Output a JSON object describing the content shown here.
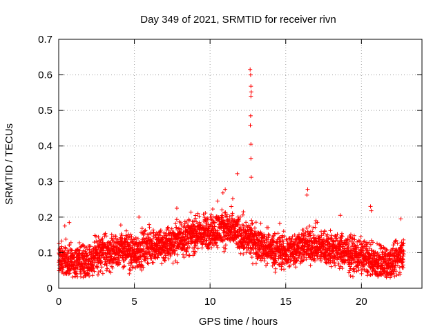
{
  "chart_data": {
    "type": "scatter",
    "title": "Day 349 of 2021, SRMTID for receiver rivn",
    "xlabel": "GPS time / hours",
    "ylabel": "SRMTID / TECUs",
    "xlim": [
      0,
      24
    ],
    "ylim": [
      0,
      0.7
    ],
    "xticks": [
      0,
      5,
      10,
      15,
      20
    ],
    "xtick_labels": [
      "0",
      "5",
      "10",
      "15",
      "20"
    ],
    "yticks": [
      0,
      0.1,
      0.2,
      0.3,
      0.4,
      0.5,
      0.6,
      0.7
    ],
    "ytick_labels": [
      "0",
      "0.1",
      "0.2",
      "0.3",
      "0.4",
      "0.5",
      "0.6",
      "0.7"
    ],
    "grid": true,
    "marker": "plus",
    "color": "#ff0000",
    "x_end": 22.8,
    "baseline_profile": [
      [
        0.0,
        0.09
      ],
      [
        1.0,
        0.07
      ],
      [
        2.0,
        0.08
      ],
      [
        3.0,
        0.1
      ],
      [
        4.0,
        0.11
      ],
      [
        5.0,
        0.1
      ],
      [
        6.0,
        0.12
      ],
      [
        7.0,
        0.12
      ],
      [
        8.0,
        0.14
      ],
      [
        9.0,
        0.15
      ],
      [
        10.0,
        0.16
      ],
      [
        11.0,
        0.17
      ],
      [
        12.0,
        0.15
      ],
      [
        13.0,
        0.13
      ],
      [
        14.0,
        0.11
      ],
      [
        15.0,
        0.1
      ],
      [
        16.0,
        0.12
      ],
      [
        17.0,
        0.12
      ],
      [
        18.0,
        0.11
      ],
      [
        19.0,
        0.1
      ],
      [
        20.0,
        0.09
      ],
      [
        21.0,
        0.07
      ],
      [
        22.0,
        0.07
      ],
      [
        22.8,
        0.1
      ]
    ],
    "scatter_spread": 0.045,
    "points_per_hour": 150,
    "random_seed": 349,
    "notable_points": [
      {
        "x": 12.65,
        "y": 0.615
      },
      {
        "x": 12.68,
        "y": 0.6
      },
      {
        "x": 12.7,
        "y": 0.568
      },
      {
        "x": 12.72,
        "y": 0.552
      },
      {
        "x": 12.7,
        "y": 0.54
      },
      {
        "x": 12.68,
        "y": 0.485
      },
      {
        "x": 12.66,
        "y": 0.458
      },
      {
        "x": 12.7,
        "y": 0.405
      },
      {
        "x": 12.7,
        "y": 0.365
      },
      {
        "x": 12.72,
        "y": 0.312
      },
      {
        "x": 11.8,
        "y": 0.322
      },
      {
        "x": 16.45,
        "y": 0.278
      },
      {
        "x": 16.4,
        "y": 0.262
      },
      {
        "x": 11.0,
        "y": 0.278
      },
      {
        "x": 10.85,
        "y": 0.268
      },
      {
        "x": 20.6,
        "y": 0.23
      },
      {
        "x": 20.65,
        "y": 0.218
      },
      {
        "x": 7.8,
        "y": 0.225
      },
      {
        "x": 22.6,
        "y": 0.195
      },
      {
        "x": 4.1,
        "y": 0.178
      },
      {
        "x": 0.7,
        "y": 0.185
      },
      {
        "x": 0.4,
        "y": 0.175
      },
      {
        "x": 5.3,
        "y": 0.2
      },
      {
        "x": 18.6,
        "y": 0.205
      },
      {
        "x": 14.6,
        "y": 0.182
      },
      {
        "x": 17.0,
        "y": 0.19
      },
      {
        "x": 9.2,
        "y": 0.21
      },
      {
        "x": 10.5,
        "y": 0.245
      },
      {
        "x": 11.5,
        "y": 0.252
      },
      {
        "x": 12.2,
        "y": 0.215
      }
    ]
  }
}
